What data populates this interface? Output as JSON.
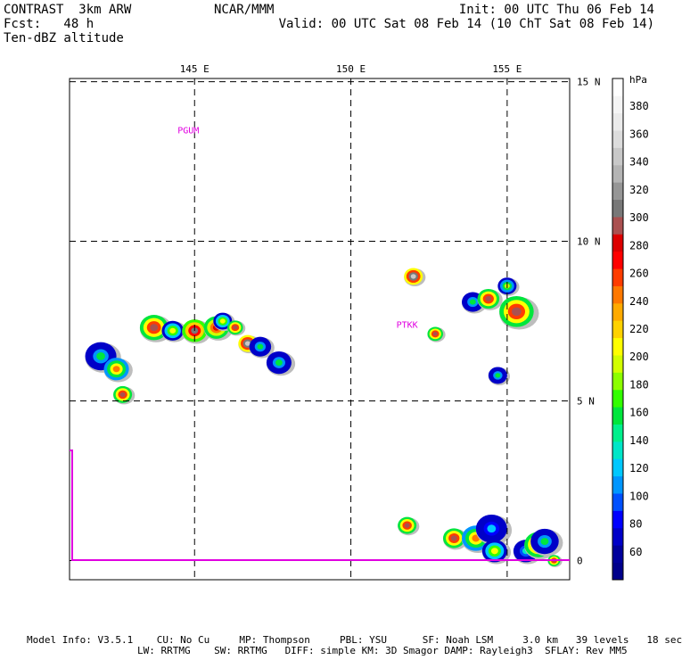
{
  "header": {
    "left_line1": "CONTRAST  3km ARW",
    "left_line2": "Fcst:   48 h",
    "left_line3": "Ten-dBZ altitude",
    "center_line1": "NCAR/MMM",
    "right_line1": "Init: 00 UTC Thu 06 Feb 14",
    "right_line2": "Valid: 00 UTC Sat 08 Feb 14 (10 ChT Sat 08 Feb 14)"
  },
  "footer": {
    "line1": "Model Info: V3.5.1    CU: No Cu     MP: Thompson     PBL: YSU      SF: Noah LSM     3.0 km   39 levels   18 sec",
    "line2": "LW: RRTMG    SW: RRTMG   DIFF: simple KM: 3D Smagor DAMP: Rayleigh3  SFLAY: Rev MM5"
  },
  "chart_data": {
    "type": "heatmap",
    "title": "Ten-dBZ altitude",
    "xlim": [
      141,
      157
    ],
    "ylim": [
      -0.6,
      15.1
    ],
    "x_ticks": [
      {
        "value": 145,
        "label": "145 E"
      },
      {
        "value": 150,
        "label": "150 E"
      },
      {
        "value": 155,
        "label": "155 E"
      }
    ],
    "y_ticks": [
      {
        "value": 15,
        "label": "15 N"
      },
      {
        "value": 10,
        "label": "10 N"
      },
      {
        "value": 5,
        "label": "5 N"
      },
      {
        "value": 0,
        "label": "0"
      }
    ],
    "stations": [
      {
        "label": "PGUM",
        "lon": 144.8,
        "lat": 13.5
      },
      {
        "label": "PTKK",
        "lon": 151.8,
        "lat": 7.4
      }
    ],
    "colorbar": {
      "unit": "hPa",
      "levels": [
        60,
        80,
        100,
        120,
        140,
        160,
        180,
        200,
        220,
        240,
        260,
        280,
        300,
        320,
        340,
        360,
        380
      ],
      "colors": [
        "#00008b",
        "#00009c",
        "#0000c8",
        "#0000ff",
        "#0050ff",
        "#0096ff",
        "#00c8ff",
        "#00e6c8",
        "#00f08c",
        "#00e63c",
        "#32ff00",
        "#8cff00",
        "#d2ff00",
        "#ffff00",
        "#ffd200",
        "#ffaa00",
        "#ff7800",
        "#ff3c00",
        "#ff0000",
        "#dc0000",
        "#aa5050",
        "#787878",
        "#969696",
        "#b4b4b4",
        "#c8c8c8",
        "#dcdcdc",
        "#ebebeb",
        "#f5f5f5",
        "#ffffff"
      ]
    },
    "echo_cells": [
      {
        "lon": 142.0,
        "lat": 6.4,
        "size": 0.5,
        "top": 150
      },
      {
        "lon": 142.5,
        "lat": 6.0,
        "size": 0.4,
        "top": 250
      },
      {
        "lon": 142.7,
        "lat": 5.2,
        "size": 0.3,
        "top": 300
      },
      {
        "lon": 143.7,
        "lat": 7.3,
        "size": 0.45,
        "top": 300
      },
      {
        "lon": 144.3,
        "lat": 7.2,
        "size": 0.35,
        "top": 210
      },
      {
        "lon": 145.0,
        "lat": 7.2,
        "size": 0.4,
        "top": 310
      },
      {
        "lon": 145.7,
        "lat": 7.3,
        "size": 0.4,
        "top": 290
      },
      {
        "lon": 145.9,
        "lat": 7.5,
        "size": 0.3,
        "top": 210
      },
      {
        "lon": 146.3,
        "lat": 7.3,
        "size": 0.25,
        "top": 300
      },
      {
        "lon": 146.7,
        "lat": 6.8,
        "size": 0.3,
        "top": 350
      },
      {
        "lon": 147.1,
        "lat": 6.7,
        "size": 0.35,
        "top": 150
      },
      {
        "lon": 147.7,
        "lat": 6.2,
        "size": 0.4,
        "top": 150
      },
      {
        "lon": 153.9,
        "lat": 8.1,
        "size": 0.35,
        "top": 150
      },
      {
        "lon": 154.4,
        "lat": 8.2,
        "size": 0.35,
        "top": 300
      },
      {
        "lon": 155.0,
        "lat": 8.6,
        "size": 0.3,
        "top": 200
      },
      {
        "lon": 155.3,
        "lat": 7.8,
        "size": 0.55,
        "top": 300
      },
      {
        "lon": 152.7,
        "lat": 7.1,
        "size": 0.25,
        "top": 300
      },
      {
        "lon": 152.0,
        "lat": 8.9,
        "size": 0.3,
        "top": 350
      },
      {
        "lon": 154.7,
        "lat": 5.8,
        "size": 0.3,
        "top": 150
      },
      {
        "lon": 151.8,
        "lat": 1.1,
        "size": 0.3,
        "top": 300
      },
      {
        "lon": 153.3,
        "lat": 0.7,
        "size": 0.35,
        "top": 300
      },
      {
        "lon": 154.0,
        "lat": 0.7,
        "size": 0.45,
        "top": 250
      },
      {
        "lon": 154.5,
        "lat": 1.0,
        "size": 0.5,
        "top": 120
      },
      {
        "lon": 154.6,
        "lat": 0.3,
        "size": 0.4,
        "top": 210
      },
      {
        "lon": 155.6,
        "lat": 0.3,
        "size": 0.4,
        "top": 130
      },
      {
        "lon": 156.0,
        "lat": 0.5,
        "size": 0.45,
        "top": 300
      },
      {
        "lon": 156.2,
        "lat": 0.6,
        "size": 0.45,
        "top": 150
      },
      {
        "lon": 156.5,
        "lat": 0.0,
        "size": 0.2,
        "top": 300
      }
    ]
  }
}
